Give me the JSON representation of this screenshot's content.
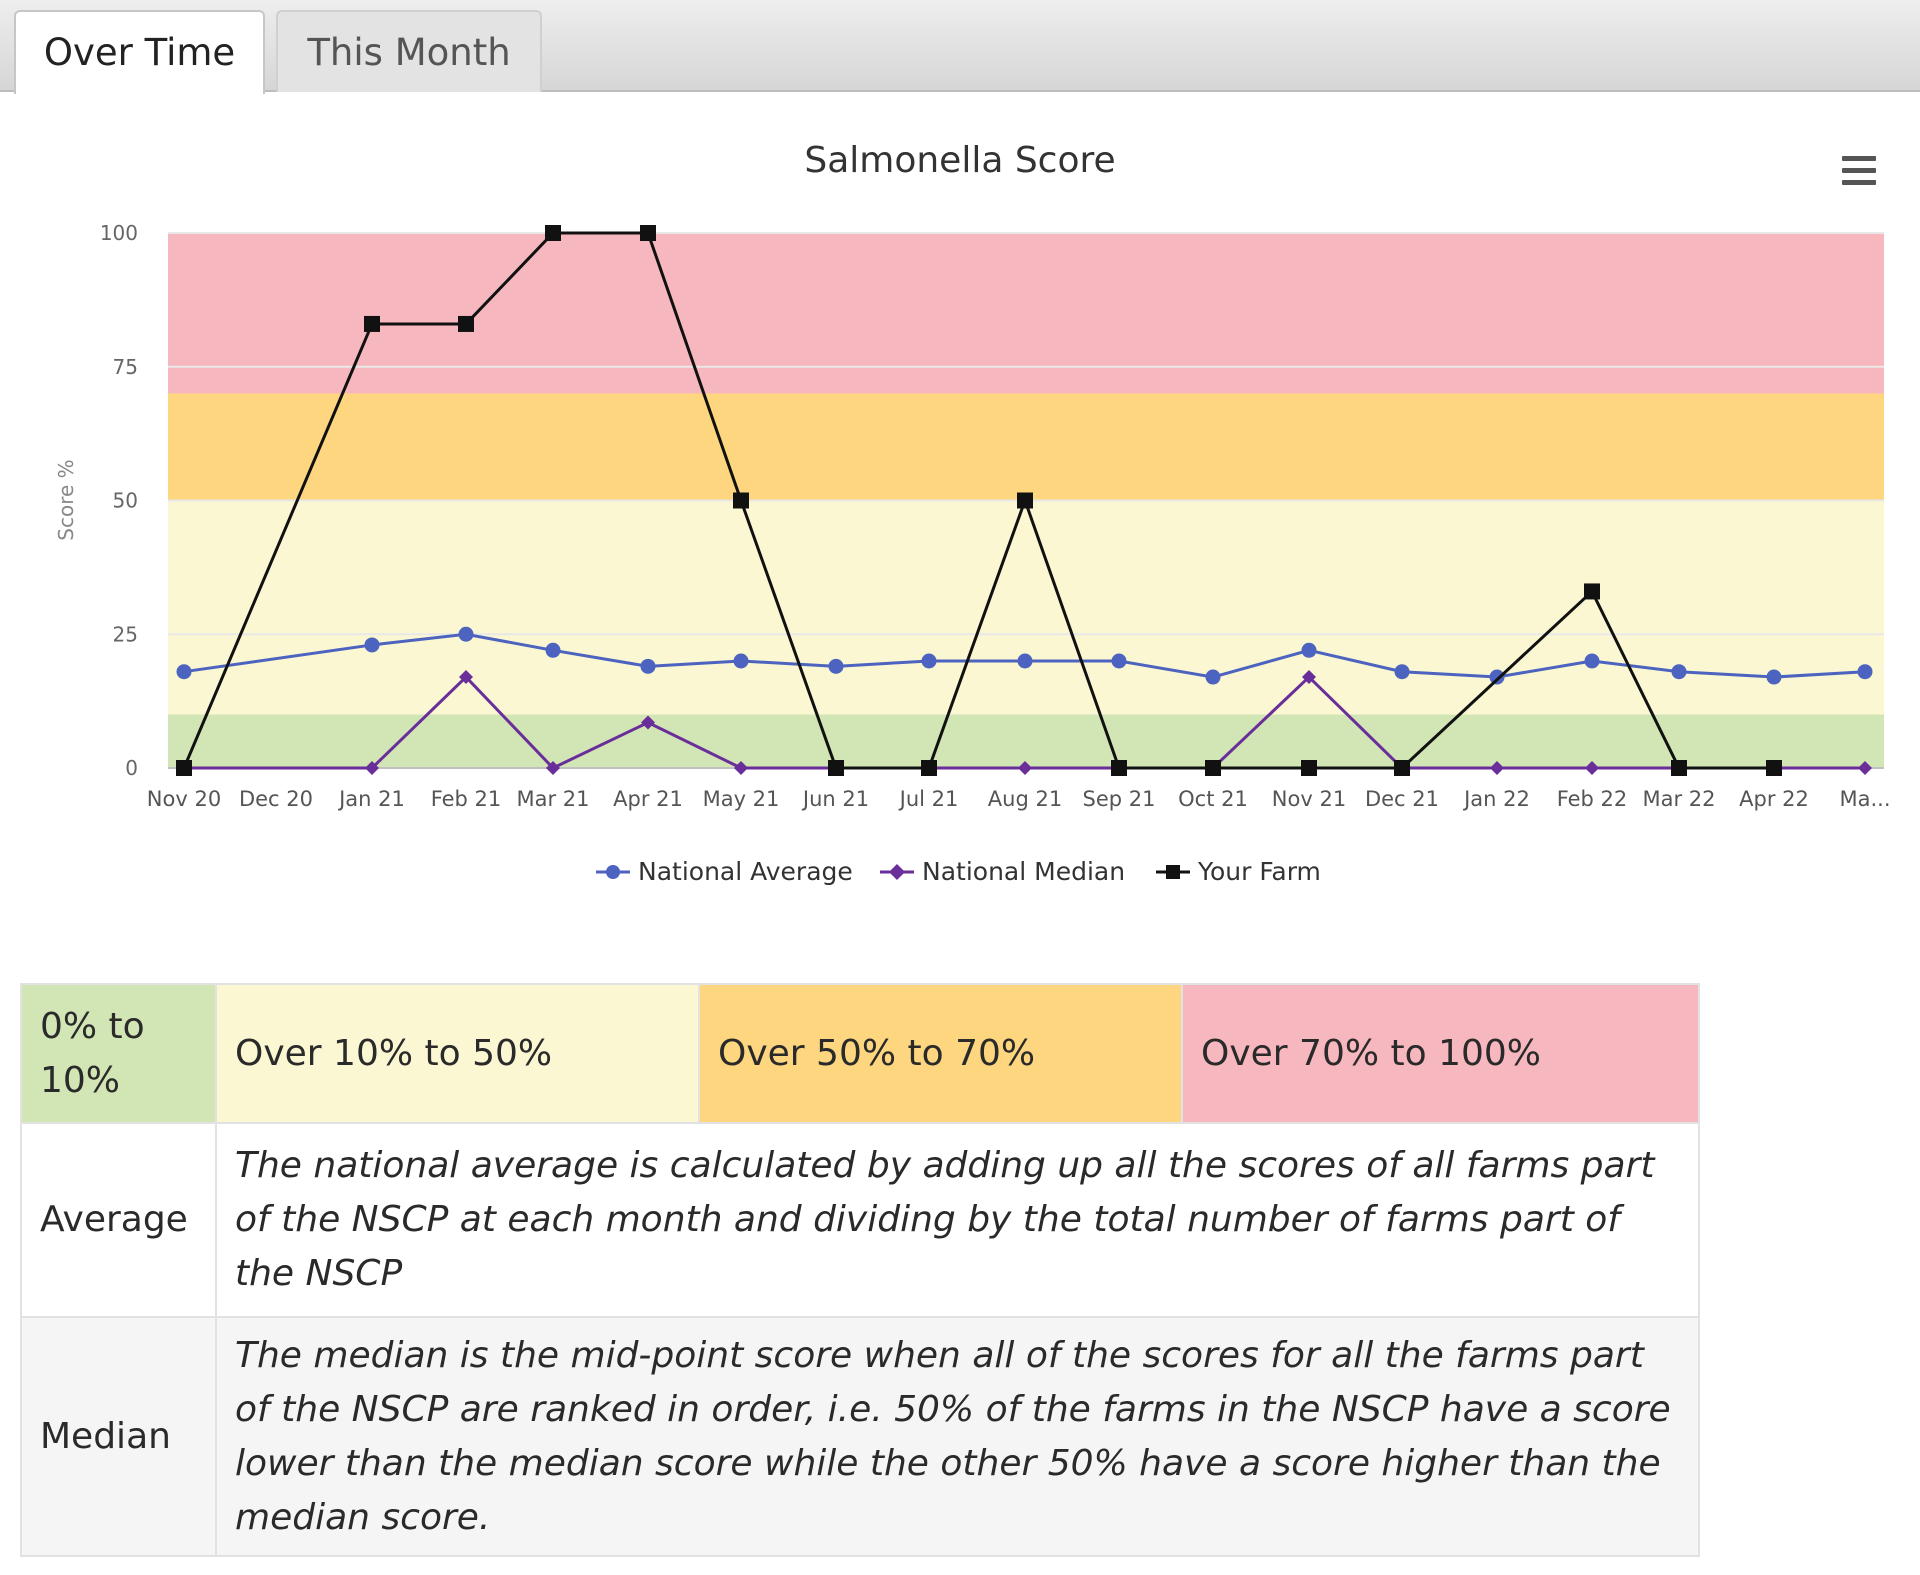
{
  "tabs": [
    {
      "label": "Over Time",
      "active": true
    },
    {
      "label": "This Month",
      "active": false
    }
  ],
  "chart": {
    "menu_icon": "hamburger-menu-icon"
  },
  "chart_data": {
    "type": "line",
    "title": "Salmonella Score",
    "ylabel": "Score %",
    "xlabel": "",
    "ylim": [
      0,
      100
    ],
    "yticks": [
      0,
      25,
      50,
      75,
      100
    ],
    "categories": [
      "Nov 20",
      "Dec 20",
      "Jan 21",
      "Feb 21",
      "Mar 21",
      "Apr 21",
      "May 21",
      "Jun 21",
      "Jul 21",
      "Aug 21",
      "Sep 21",
      "Oct 21",
      "Nov 21",
      "Dec 21",
      "Jan 22",
      "Feb 22",
      "Mar 22",
      "Apr 22",
      "Ma..."
    ],
    "series": [
      {
        "name": "National Average",
        "color": "#4d63c0",
        "marker": "circle",
        "values": [
          18,
          null,
          23,
          25,
          22,
          19,
          20,
          19,
          20,
          20,
          20,
          17,
          22,
          18,
          17,
          20,
          18,
          17,
          18
        ]
      },
      {
        "name": "National Median",
        "color": "#6a2e9a",
        "marker": "diamond",
        "values": [
          0,
          null,
          0,
          17,
          0,
          8.5,
          0,
          0,
          0,
          0,
          0,
          0,
          17,
          0,
          0,
          0,
          0,
          0,
          0
        ]
      },
      {
        "name": "Your Farm",
        "color": "#111111",
        "marker": "square",
        "values": [
          0,
          null,
          83,
          83,
          100,
          100,
          50,
          0,
          0,
          50,
          0,
          0,
          0,
          0,
          null,
          33,
          0,
          0,
          null
        ]
      }
    ],
    "bands": [
      {
        "from": 0,
        "to": 10,
        "color": "#d2e5b5"
      },
      {
        "from": 10,
        "to": 50,
        "color": "#faf7d2"
      },
      {
        "from": 50,
        "to": 70,
        "color": "#fdd67f"
      },
      {
        "from": 70,
        "to": 100,
        "color": "#f6b8be"
      }
    ],
    "grid": true,
    "legend_position": "bottom-center"
  },
  "key_table": {
    "bands": [
      {
        "label": "0% to 10%",
        "color": "#d2e5b5"
      },
      {
        "label": "Over 10% to 50%",
        "color": "#faf7d2"
      },
      {
        "label": "Over 50% to 70%",
        "color": "#fdd67f"
      },
      {
        "label": "Over 70% to 100%",
        "color": "#f6b8be"
      }
    ],
    "average": {
      "label": "Average",
      "text": "The national average is calculated by adding up all the scores of all farms part of the NSCP at each month and dividing by the total number of farms part of the NSCP"
    },
    "median": {
      "label": "Median",
      "text": "The median is the mid-point score when all of the scores for all the farms part of the NSCP are ranked in order, i.e. 50% of the farms in the NSCP have a score lower than the median score while the other 50% have a score higher than the median score."
    }
  }
}
